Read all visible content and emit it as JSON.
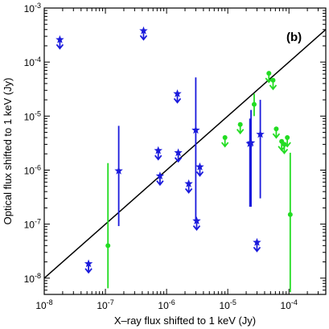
{
  "chart_data": {
    "type": "scatter",
    "panel_label": "(b)",
    "xlabel": "X–ray flux shifted to 1 keV (Jy)",
    "ylabel": "Optical flux shifted to 1 keV (Jy)",
    "xscale": "log",
    "yscale": "log",
    "xlim": [
      1e-08,
      0.0004
    ],
    "ylim": [
      5e-09,
      0.001
    ],
    "grid": false,
    "x_tick_labels": [
      {
        "value": 1e-08,
        "base": "10",
        "exp": "-8"
      },
      {
        "value": 1e-07,
        "base": "10",
        "exp": "-7"
      },
      {
        "value": 1e-06,
        "base": "10",
        "exp": "-6"
      },
      {
        "value": 1e-05,
        "base": "10",
        "exp": "-5"
      },
      {
        "value": 0.0001,
        "base": "10",
        "exp": "-4"
      }
    ],
    "y_tick_labels": [
      {
        "value": 1e-08,
        "base": "10",
        "exp": "-8"
      },
      {
        "value": 1e-07,
        "base": "10",
        "exp": "-7"
      },
      {
        "value": 1e-06,
        "base": "10",
        "exp": "-6"
      },
      {
        "value": 1e-05,
        "base": "10",
        "exp": "-5"
      },
      {
        "value": 0.0001,
        "base": "10",
        "exp": "-4"
      },
      {
        "value": 0.001,
        "base": "10",
        "exp": "-3"
      }
    ],
    "reference_line": {
      "x": [
        1e-08,
        0.0004
      ],
      "y": [
        1e-08,
        0.0004
      ],
      "color": "#000000"
    },
    "series": [
      {
        "color": "#1a1adc",
        "marker": "star",
        "upper_limits": [
          {
            "x": 1.8e-08,
            "y": 0.00026
          },
          {
            "x": 4.2e-07,
            "y": 0.00038
          },
          {
            "x": 1.5e-06,
            "y": 2.6e-05
          },
          {
            "x": 7.3e-07,
            "y": 2.3e-06
          },
          {
            "x": 1.55e-06,
            "y": 2.1e-06
          },
          {
            "x": 3.5e-06,
            "y": 1.15e-06
          },
          {
            "x": 7.8e-07,
            "y": 7.8e-07
          },
          {
            "x": 2.3e-06,
            "y": 5.6e-07
          },
          {
            "x": 5.3e-08,
            "y": 1.85e-08
          },
          {
            "x": 3.1e-06,
            "y": 1.15e-07
          },
          {
            "x": 3e-05,
            "y": 4.6e-08
          }
        ],
        "points": [
          {
            "x": 1.65e-07,
            "y": 9.7e-07,
            "ylow": 9.2e-08,
            "yhigh": 6.6e-06
          },
          {
            "x": 3e-06,
            "y": 5.5e-06,
            "ylow": 1.2e-07,
            "yhigh": 5.2e-05
          },
          {
            "x": 2.3e-05,
            "y": 3.1e-06,
            "ylow": 2.1e-07,
            "yhigh": 9e-06
          },
          {
            "x": 2.4e-05,
            "y": 3.2e-06,
            "ylow": 2.1e-07,
            "yhigh": 1.3e-05
          },
          {
            "x": 3.4e-05,
            "y": 4.6e-06,
            "ylow": 3e-07,
            "yhigh": 2e-05
          }
        ]
      },
      {
        "color": "#22dc22",
        "marker": "dot",
        "upper_limits": [
          {
            "x": 4.7e-05,
            "y": 6.2e-05
          },
          {
            "x": 5.5e-05,
            "y": 4.6e-05
          },
          {
            "x": 1.6e-05,
            "y": 7e-06
          },
          {
            "x": 9e-06,
            "y": 4e-06
          },
          {
            "x": 6.2e-05,
            "y": 5.8e-06
          },
          {
            "x": 7.6e-05,
            "y": 3.4e-06
          },
          {
            "x": 8.4e-05,
            "y": 3e-06
          },
          {
            "x": 9.4e-05,
            "y": 4e-06
          }
        ],
        "points": [
          {
            "x": 2.7e-05,
            "y": 1.65e-05,
            "ylow": 1e-05,
            "yhigh": 2.6e-05
          },
          {
            "x": 1.1e-07,
            "y": 4e-08,
            "ylow": 6.5e-09,
            "yhigh": 1.35e-06
          },
          {
            "x": 0.000105,
            "y": 1.5e-07,
            "ylow": 5.5e-09,
            "yhigh": 2.1e-06
          }
        ]
      }
    ]
  }
}
